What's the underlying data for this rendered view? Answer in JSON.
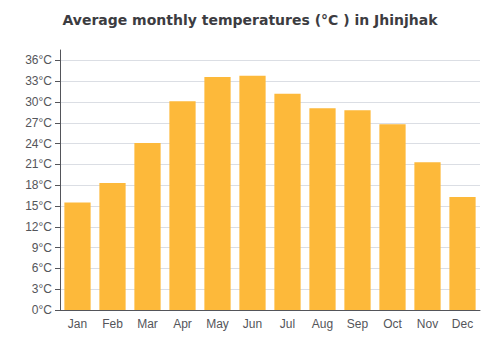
{
  "chart_data": {
    "type": "bar",
    "title": "Average monthly temperatures (°C ) in Jhinjhak",
    "categories": [
      "Jan",
      "Feb",
      "Mar",
      "Apr",
      "May",
      "Jun",
      "Jul",
      "Aug",
      "Sep",
      "Oct",
      "Nov",
      "Dec"
    ],
    "values": [
      15.5,
      18.3,
      24.1,
      30.1,
      33.6,
      33.8,
      31.2,
      29.1,
      28.8,
      26.8,
      21.3,
      16.3
    ],
    "color": "#FDB93A",
    "ylim": [
      0,
      37.5
    ],
    "yticks": [
      {
        "value": 0,
        "label": "0°C"
      },
      {
        "value": 3,
        "label": "3°C"
      },
      {
        "value": 6,
        "label": "6°C"
      },
      {
        "value": 9,
        "label": "9°C"
      },
      {
        "value": 12,
        "label": "12°C"
      },
      {
        "value": 15,
        "label": "15°C"
      },
      {
        "value": 18,
        "label": "18°C"
      },
      {
        "value": 21,
        "label": "21°C"
      },
      {
        "value": 24,
        "label": "24°C"
      },
      {
        "value": 27,
        "label": "27°C"
      },
      {
        "value": 30,
        "label": "30°C"
      },
      {
        "value": 33,
        "label": "33°C"
      },
      {
        "value": 36,
        "label": "36°C"
      }
    ],
    "grid": true
  }
}
